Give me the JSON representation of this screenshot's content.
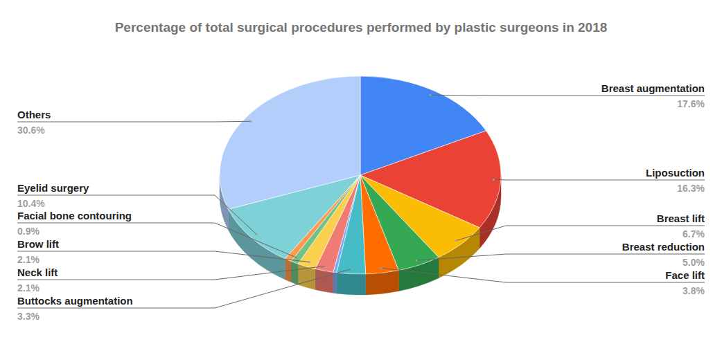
{
  "chart_data": {
    "type": "pie",
    "title": "Percentage of total surgical procedures performed by plastic surgeons in 2018",
    "categories": [
      "Breast augmentation",
      "Liposuction",
      "Breast lift",
      "Breast reduction",
      "Face lift",
      "Buttocks augmentation",
      null,
      "Neck lift",
      "Brow lift",
      "Facial bone contouring",
      null,
      "Eyelid surgery",
      "Others"
    ],
    "values": [
      17.6,
      16.3,
      6.7,
      5.0,
      3.8,
      3.3,
      0.4,
      2.1,
      2.1,
      0.9,
      0.8,
      10.4,
      30.6
    ],
    "value_labels": [
      "17.6%",
      "16.3%",
      "6.7%",
      "5.0%",
      "3.8%",
      "3.3%",
      null,
      "2.1%",
      "2.1%",
      "0.9%",
      null,
      "10.4%",
      "30.6%"
    ],
    "colors": [
      "#4285f4",
      "#ea4335",
      "#fbbc04",
      "#34a853",
      "#ff6d01",
      "#46bdc6",
      "#7baaf7",
      "#f07b72",
      "#fcd04f",
      "#71c287",
      "#ff994d",
      "#7ed1d7",
      "#b3cefb"
    ],
    "data_labels": true
  }
}
